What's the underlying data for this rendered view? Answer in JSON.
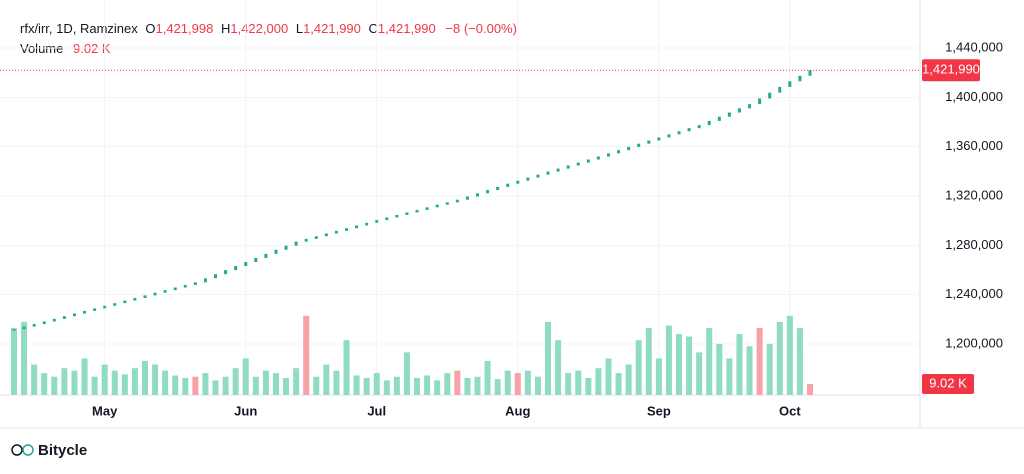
{
  "chart_data": {
    "type": "candle",
    "header": {
      "symbol": "rfx/irr, 1D, Ramzinex",
      "o_key": "O",
      "o": "1,421,998",
      "h_key": "H",
      "h": "1,422,000",
      "l_key": "L",
      "l": "1,421,990",
      "c_key": "C",
      "c": "1,421,990",
      "change": "−8 (−0.00%)"
    },
    "categories": [
      null,
      null,
      null,
      null,
      null,
      null,
      null,
      null,
      null,
      "May",
      null,
      null,
      null,
      null,
      null,
      null,
      null,
      null,
      null,
      null,
      null,
      null,
      null,
      "Jun",
      null,
      null,
      null,
      null,
      null,
      null,
      null,
      null,
      null,
      null,
      null,
      null,
      "Jul",
      null,
      null,
      null,
      null,
      null,
      null,
      null,
      null,
      null,
      null,
      null,
      null,
      null,
      "Aug",
      null,
      null,
      null,
      null,
      null,
      null,
      null,
      null,
      null,
      null,
      null,
      null,
      null,
      "Sep",
      null,
      null,
      null,
      null,
      null,
      null,
      null,
      null,
      null,
      null,
      null,
      null,
      "Oct",
      null,
      null
    ],
    "series": [
      {
        "name": "rfx/irr",
        "color": "#22ab94",
        "values": [
          1212000,
          1214100,
          1216200,
          1218300,
          1220400,
          1222600,
          1224700,
          1226800,
          1228900,
          1231000,
          1233100,
          1235200,
          1237300,
          1239400,
          1241600,
          1243700,
          1245800,
          1247900,
          1250000,
          1253300,
          1256600,
          1259900,
          1263200,
          1266500,
          1269800,
          1273100,
          1276400,
          1279700,
          1283000,
          1285200,
          1287400,
          1289600,
          1291800,
          1293900,
          1296100,
          1298300,
          1300500,
          1302600,
          1304600,
          1306700,
          1308700,
          1310800,
          1312900,
          1314900,
          1317000,
          1319600,
          1322200,
          1324800,
          1327400,
          1330000,
          1332400,
          1334900,
          1337300,
          1339800,
          1342200,
          1344700,
          1347100,
          1349600,
          1352000,
          1354600,
          1357200,
          1359800,
          1362400,
          1365000,
          1367500,
          1370000,
          1372500,
          1375000,
          1377500,
          1380900,
          1384300,
          1387700,
          1391100,
          1394500,
          1399100,
          1403800,
          1408400,
          1413000,
          1417500,
          1421990
        ]
      },
      {
        "name": "Volume",
        "color": "#8fdcc0",
        "down_color": "#f7a1a8",
        "values": [
          55000,
          60000,
          25000,
          18000,
          15000,
          22000,
          20000,
          30000,
          15000,
          25000,
          20000,
          17000,
          22000,
          28000,
          25000,
          20000,
          16000,
          14000,
          15000,
          18000,
          12000,
          15000,
          22000,
          30000,
          15000,
          20000,
          18000,
          14000,
          22000,
          65000,
          15000,
          25000,
          20000,
          45000,
          16000,
          14000,
          18000,
          12000,
          15000,
          35000,
          14000,
          16000,
          12000,
          18000,
          20000,
          14000,
          15000,
          28000,
          13000,
          20000,
          18000,
          20000,
          15000,
          60000,
          45000,
          18000,
          20000,
          14000,
          22000,
          30000,
          18000,
          25000,
          45000,
          55000,
          30000,
          57000,
          50000,
          48000,
          35000,
          55000,
          42000,
          30000,
          50000,
          40000,
          55000,
          42000,
          60000,
          65000,
          55000,
          9020
        ],
        "last_label": "9.02 K",
        "down_bars": [
          18,
          29,
          44,
          50,
          74,
          79
        ]
      }
    ],
    "ylim": [
      1158650,
      1478920
    ],
    "yticks": [
      {
        "value": 1200000,
        "label": "1,200,000"
      },
      {
        "value": 1240000,
        "label": "1,240,000"
      },
      {
        "value": 1280000,
        "label": "1,280,000"
      },
      {
        "value": 1320000,
        "label": "1,320,000"
      },
      {
        "value": 1360000,
        "label": "1,360,000"
      },
      {
        "value": 1400000,
        "label": "1,400,000"
      },
      {
        "value": 1440000,
        "label": "1,440,000"
      }
    ],
    "volume_lim": [
      0,
      110000
    ],
    "last_price": {
      "value": 1421990,
      "label": "1,421,990"
    },
    "grid": true,
    "brand": "Bitycle"
  }
}
